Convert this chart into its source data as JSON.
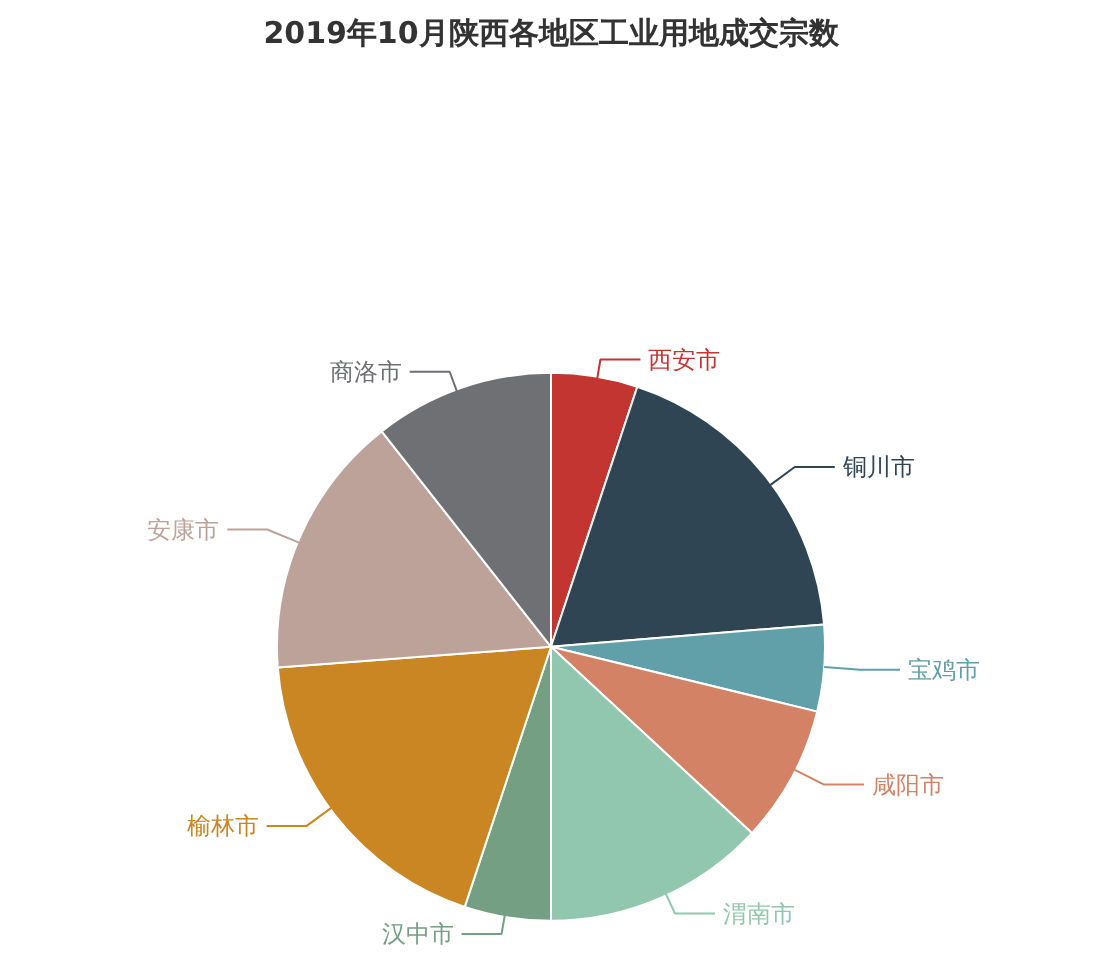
{
  "chart_data": {
    "type": "pie",
    "title": "2019年10月陕西各地区工业用地成交宗数",
    "categories": [
      "西安市",
      "铜川市",
      "宝鸡市",
      "咸阳市",
      "渭南市",
      "汉中市",
      "榆林市",
      "安康市",
      "商洛市"
    ],
    "values": [
      5.1,
      18.6,
      5.1,
      8.1,
      13.1,
      5.1,
      18.7,
      15.6,
      10.6
    ],
    "colors": [
      "#c23531",
      "#2f4554",
      "#61a0a8",
      "#d48265",
      "#91c7ae",
      "#749f83",
      "#ca8622",
      "#bda29a",
      "#6e7074"
    ]
  }
}
